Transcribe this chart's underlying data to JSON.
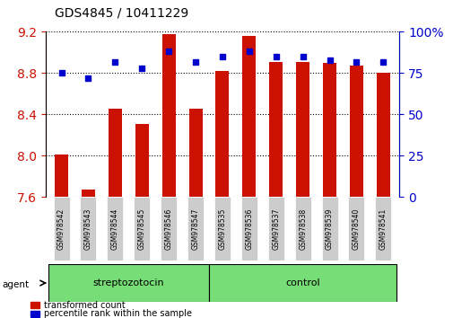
{
  "title": "GDS4845 / 10411229",
  "samples": [
    "GSM978542",
    "GSM978543",
    "GSM978544",
    "GSM978545",
    "GSM978546",
    "GSM978547",
    "GSM978535",
    "GSM978536",
    "GSM978537",
    "GSM978538",
    "GSM978539",
    "GSM978540",
    "GSM978541"
  ],
  "bar_values": [
    8.01,
    7.67,
    8.46,
    8.31,
    9.18,
    8.46,
    8.82,
    9.16,
    8.91,
    8.91,
    8.9,
    8.87,
    8.8
  ],
  "percentile_values": [
    75,
    72,
    82,
    78,
    88,
    82,
    85,
    88,
    85,
    85,
    83,
    82,
    82
  ],
  "bar_color": "#cc1100",
  "dot_color": "#0000cc",
  "ylim": [
    7.6,
    9.2
  ],
  "yticks": [
    7.6,
    8.0,
    8.4,
    8.8,
    9.2
  ],
  "y2lim": [
    0,
    100
  ],
  "y2ticks": [
    0,
    25,
    50,
    75,
    100
  ],
  "y2ticklabels": [
    "0",
    "25",
    "50",
    "75",
    "100%"
  ],
  "group1_label": "streptozotocin",
  "group2_label": "control",
  "group1_count": 6,
  "group2_count": 7,
  "agent_label": "agent",
  "legend1": "transformed count",
  "legend2": "percentile rank within the sample",
  "bar_width": 0.5,
  "background_color": "#ffffff",
  "plot_bg": "#ffffff",
  "label_area_color": "#cccccc",
  "group_area_color": "#77dd77"
}
